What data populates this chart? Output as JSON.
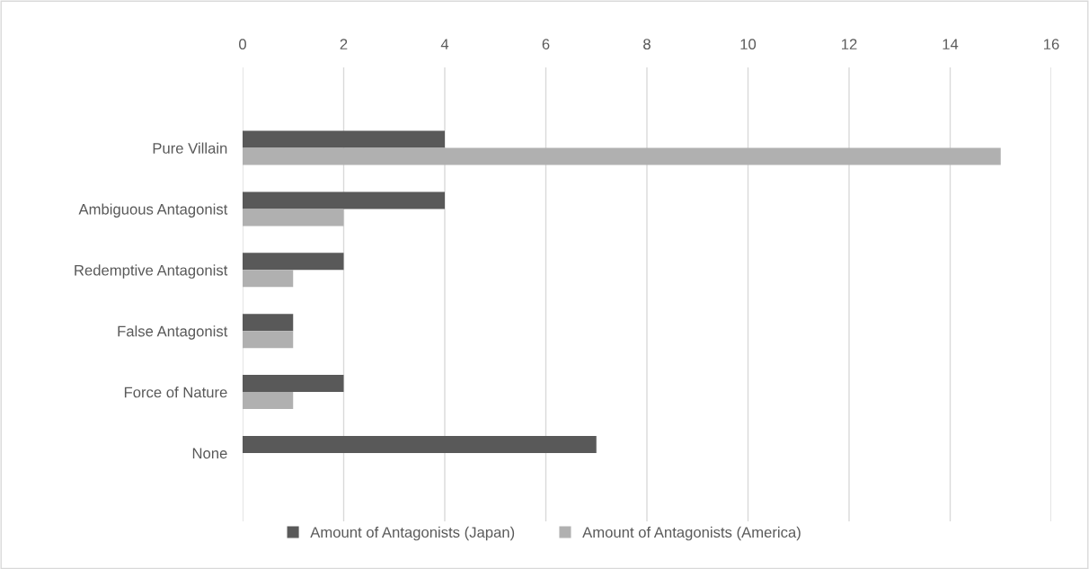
{
  "chart_data": {
    "type": "bar",
    "orientation": "horizontal",
    "categories": [
      "Pure Villain",
      "Ambiguous Antagonist",
      "Redemptive Antagonist",
      "False Antagonist",
      "Force of Nature",
      "None"
    ],
    "series": [
      {
        "name": "Amount of Antagonists (Japan)",
        "color": "#595959",
        "values": [
          4,
          4,
          2,
          1,
          2,
          7
        ]
      },
      {
        "name": "Amount of Antagonists (America)",
        "color": "#b0b0b0",
        "values": [
          15,
          2,
          1,
          1,
          1,
          0
        ]
      }
    ],
    "xlim": [
      0,
      16
    ],
    "xticks": [
      0,
      2,
      4,
      6,
      8,
      10,
      12,
      14,
      16
    ],
    "grid": "x",
    "legend": "bottom"
  }
}
